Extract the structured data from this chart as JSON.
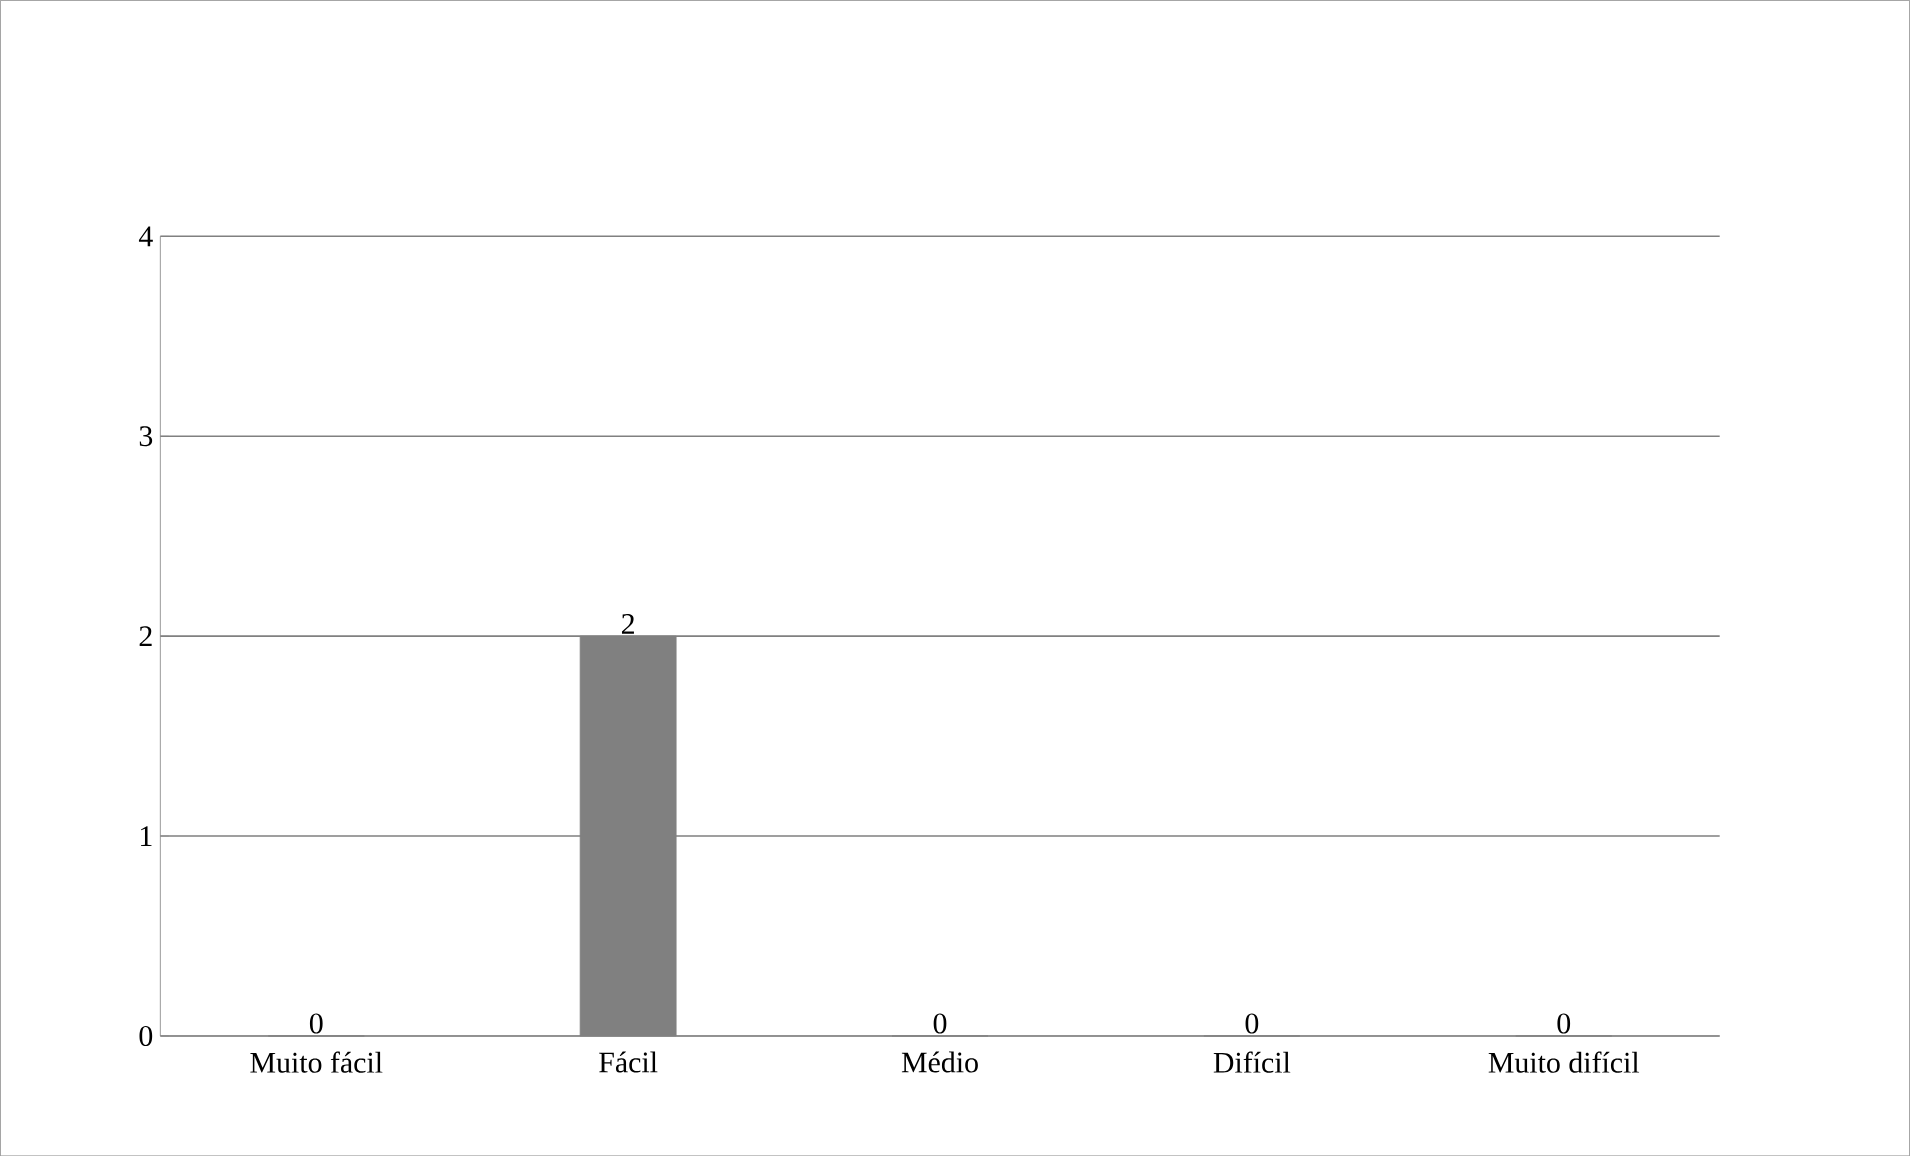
{
  "chart_data": {
    "type": "bar",
    "categories": [
      "Muito fácil",
      "Fácil",
      "Médio",
      "Difícil",
      "Muito difícil"
    ],
    "values": [
      0,
      2,
      0,
      0,
      0
    ],
    "color": "#808080",
    "ylim": [
      0,
      4
    ],
    "yticks": [
      0,
      1,
      2,
      3,
      4
    ],
    "grid": "y",
    "data_labels": true
  }
}
